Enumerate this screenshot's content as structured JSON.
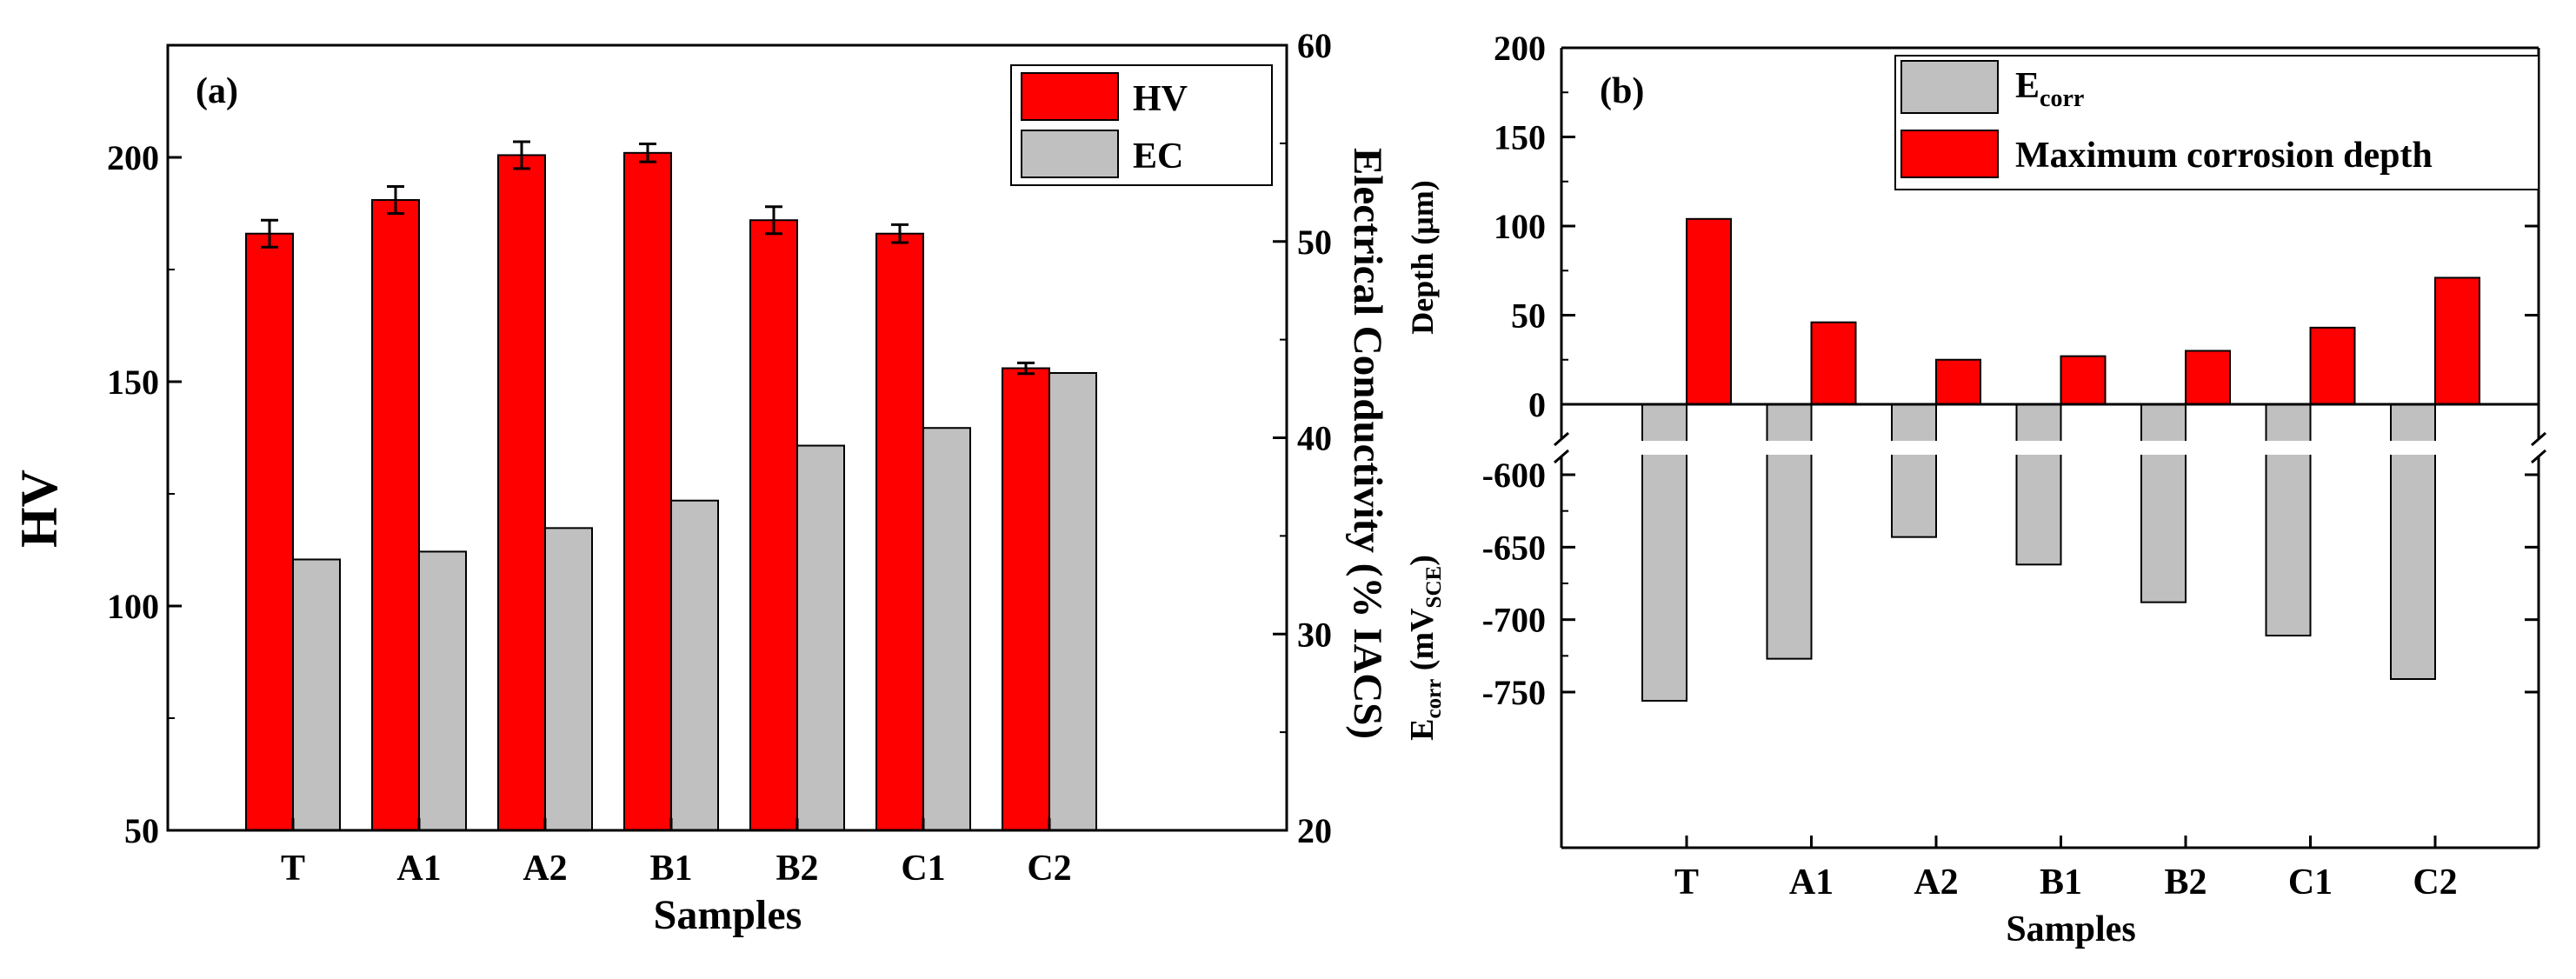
{
  "colors": {
    "hv": "#ff0000",
    "ec": "#c0c0c0",
    "depth": "#ff0000",
    "ecorr": "#c0c0c0",
    "axis": "#000000"
  },
  "chart_data": [
    {
      "type": "bar",
      "panel_label": "(a)",
      "categories": [
        "T",
        "A1",
        "A2",
        "B1",
        "B2",
        "C1",
        "C2"
      ],
      "xlabel": "Samples",
      "ylabel": "HV",
      "ylabel_right": "Electrical Conductivity (% IACS)",
      "ylim": [
        50,
        225
      ],
      "yticks": [
        50,
        100,
        150,
        200
      ],
      "ylim_right": [
        20,
        60
      ],
      "yticks_right": [
        20,
        30,
        40,
        50,
        60
      ],
      "legend_position": "top-right",
      "series": [
        {
          "name": "HV",
          "axis": "left",
          "values": [
            183,
            190.5,
            200.5,
            201,
            186,
            183,
            153
          ],
          "errors": [
            3,
            3,
            3,
            2,
            3,
            2,
            1.2
          ]
        },
        {
          "name": "EC",
          "axis": "right",
          "values": [
            33.8,
            34.2,
            35.4,
            36.8,
            39.6,
            40.5,
            43.3
          ]
        }
      ]
    },
    {
      "type": "bar",
      "panel_label": "(b)",
      "categories": [
        "T",
        "A1",
        "A2",
        "B1",
        "B2",
        "C1",
        "C2"
      ],
      "xlabel": "Samples",
      "ylabel_top": "Depth (μm)",
      "ylabel_bottom": {
        "main": "E",
        "sub": "corr",
        "units_open": " (mV",
        "units_sub": "SCE",
        "units_close": ")"
      },
      "ylim_top": [
        0,
        200
      ],
      "yticks_top": [
        0,
        50,
        100,
        150,
        200
      ],
      "ylim_bottom": [
        -780,
        -580
      ],
      "yticks_bottom": [
        -600,
        -650,
        -700,
        -750
      ],
      "axis_break": true,
      "legend_position": "top-right",
      "series": [
        {
          "name": "Maximum corrosion depth",
          "axis": "top",
          "values": [
            104,
            46,
            25,
            27,
            30,
            43,
            71
          ]
        },
        {
          "name_main": "E",
          "name_sub": "corr",
          "axis": "bottom",
          "values": [
            -756,
            -727,
            -643,
            -662,
            -688,
            -711,
            -741
          ]
        }
      ]
    }
  ]
}
